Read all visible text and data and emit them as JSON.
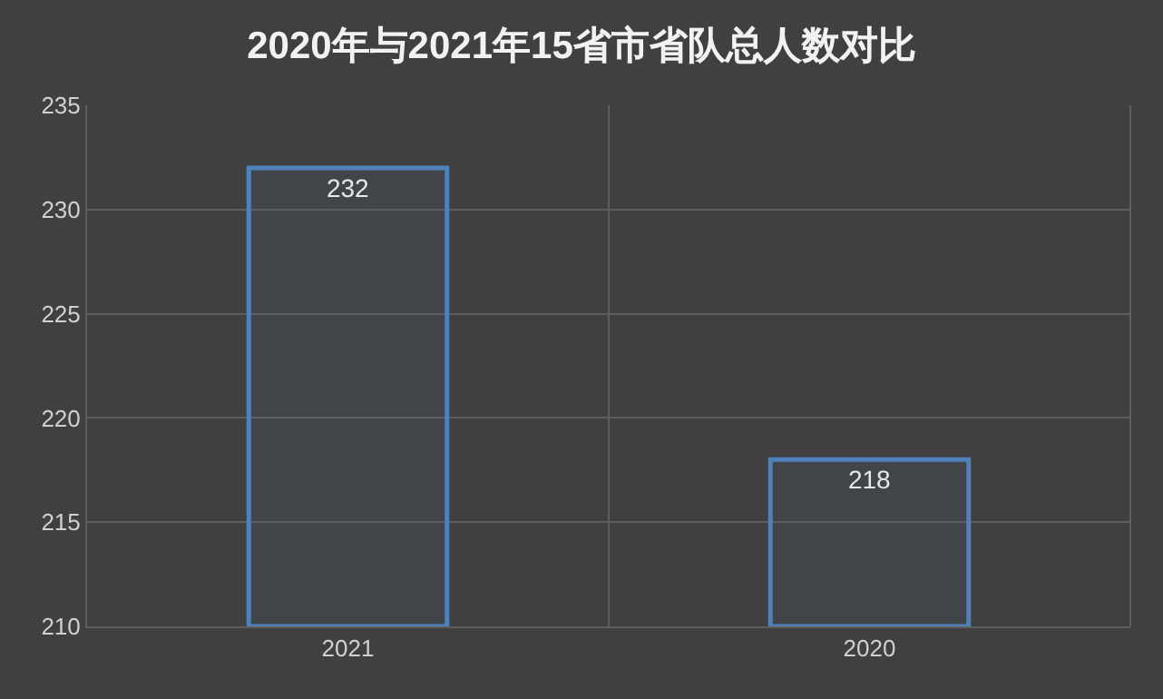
{
  "chart_data": {
    "type": "bar",
    "title": "2020年与2021年15省市省队总人数对比",
    "categories": [
      "2021",
      "2020"
    ],
    "values": [
      232,
      218
    ],
    "color": "#4f81bd",
    "ylim": [
      210,
      235
    ],
    "yticks": [
      210,
      215,
      220,
      225,
      230,
      235
    ],
    "grid": "y",
    "data_labels": true
  }
}
